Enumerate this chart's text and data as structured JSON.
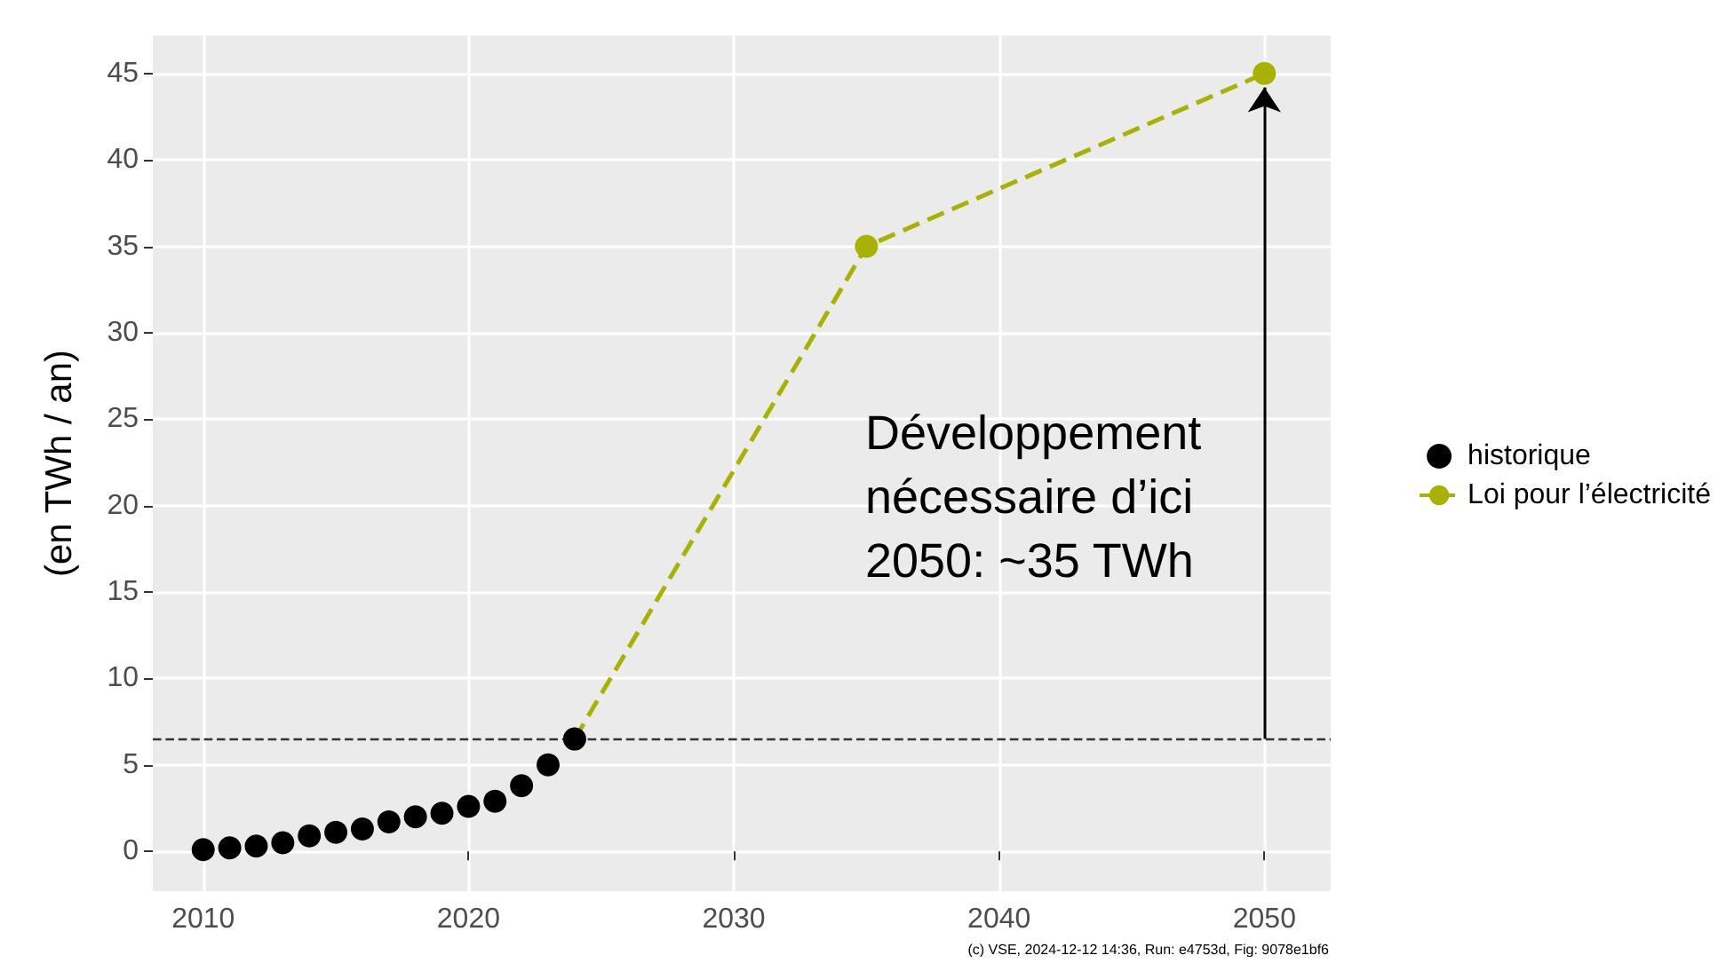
{
  "chart_data": {
    "type": "scatter",
    "ylabel": "(en TWh / an)",
    "xlim": [
      2008.1,
      2052.5
    ],
    "xticks": [
      2010,
      2020,
      2030,
      2040,
      2050
    ],
    "ylim": [
      -2.3,
      47.2
    ],
    "yticks": [
      0,
      5,
      10,
      15,
      20,
      25,
      30,
      35,
      40,
      45
    ],
    "grid": true,
    "legend": "right",
    "marker": "circle",
    "series": [
      {
        "name": "historique",
        "type": "scatter",
        "color": "#000000",
        "x": [
          2010,
          2011,
          2012,
          2013,
          2014,
          2015,
          2016,
          2017,
          2018,
          2019,
          2020,
          2021,
          2022,
          2023,
          2024
        ],
        "values": [
          0.1,
          0.2,
          0.3,
          0.5,
          0.9,
          1.1,
          1.3,
          1.7,
          2.0,
          2.2,
          2.6,
          2.9,
          3.8,
          5.0,
          6.5
        ]
      },
      {
        "name": "Loi pour l’électricité",
        "type": "line",
        "line_style": "dashed",
        "color": "#a9b200",
        "x": [
          2024,
          2035,
          2050
        ],
        "values": [
          6.5,
          35,
          45
        ]
      }
    ],
    "ref_lines": [
      {
        "axis": "y",
        "value": 6.5,
        "line_style": "dashed",
        "color": "#333333"
      }
    ],
    "annotations": [
      "Développement\nnécessaire d’ici\n2050: ~35 TWh",
      "(c) VSE, 2024-12-12 14:36, Run: e4753d, Fig: 9078e1bf6"
    ]
  }
}
